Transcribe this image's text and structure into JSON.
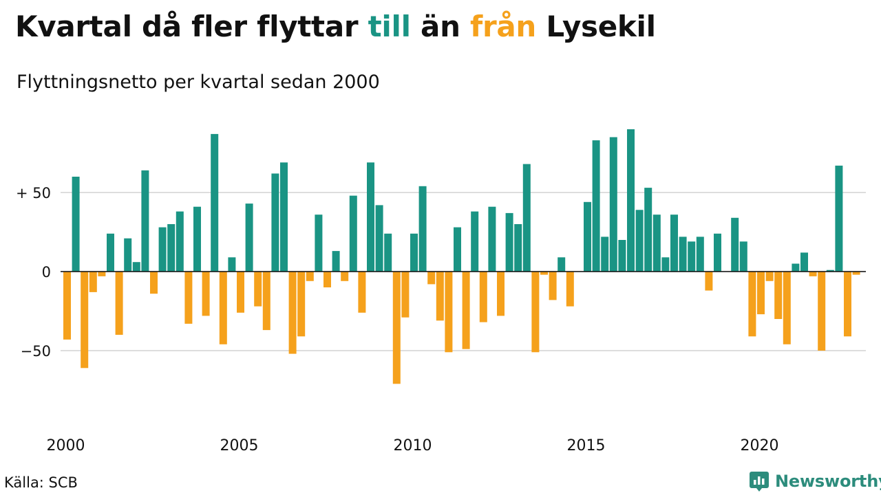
{
  "header": {
    "title_part1": "Kvartal då fler flyttar ",
    "title_till": "till",
    "title_part2": " än ",
    "title_fran": "från",
    "title_part3": " Lysekil",
    "subtitle": "Flyttningsnetto per kvartal sedan 2000"
  },
  "footer": {
    "source": "Källa: SCB",
    "brand": "Newsworthy",
    "brand_icon": "newsworthy-chart-icon"
  },
  "colors": {
    "positive": "#1a9484",
    "negative": "#f5a11c",
    "grid": "#dddddd",
    "brand": "#2c8c7c"
  },
  "chart_data": {
    "type": "bar",
    "title": "Kvartal då fler flyttar till än från Lysekil",
    "subtitle": "Flyttningsnetto per kvartal sedan 2000",
    "start_year": 2000,
    "first_quarter": 1,
    "ylim": [
      -80,
      95
    ],
    "yticks": [
      {
        "value": 50,
        "label": "+ 50"
      },
      {
        "value": 0,
        "label": "0"
      },
      {
        "value": -50,
        "label": "−50"
      }
    ],
    "xticks": [
      {
        "year": 2000,
        "label": "2000"
      },
      {
        "year": 2005,
        "label": "2005"
      },
      {
        "year": 2010,
        "label": "2010"
      },
      {
        "year": 2015,
        "label": "2015"
      },
      {
        "year": 2020,
        "label": "2020"
      }
    ],
    "grid": true,
    "values": [
      -43,
      60,
      -61,
      -13,
      -3,
      24,
      -40,
      21,
      6,
      64,
      -14,
      28,
      30,
      38,
      -33,
      41,
      -28,
      87,
      -46,
      9,
      -26,
      43,
      -22,
      -37,
      62,
      69,
      -52,
      -41,
      -6,
      36,
      -10,
      13,
      -6,
      48,
      -26,
      69,
      42,
      24,
      -71,
      -29,
      24,
      54,
      -8,
      -31,
      -51,
      28,
      -49,
      38,
      -32,
      41,
      -28,
      37,
      30,
      68,
      -51,
      -2,
      -18,
      9,
      -22,
      0,
      44,
      83,
      22,
      85,
      20,
      90,
      39,
      53,
      36,
      9,
      36,
      22,
      19,
      22,
      -12,
      24,
      0,
      34,
      19,
      -41,
      -27,
      -6,
      -30,
      -46,
      5,
      12,
      -3,
      -50,
      1,
      67,
      -41,
      -2
    ]
  }
}
